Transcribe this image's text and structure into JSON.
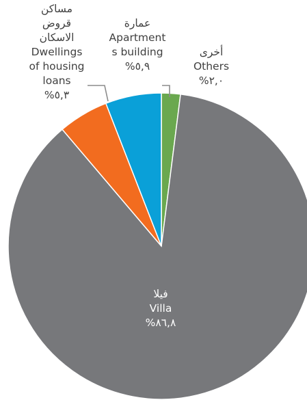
{
  "chart_data": {
    "type": "pie",
    "start_angle_deg": 0,
    "direction": "clockwise",
    "slices": [
      {
        "key": "others",
        "value": 2.0,
        "color": "#6aa84f",
        "label_lines": [
          "أخرى",
          "Others",
          "%٢,٠"
        ]
      },
      {
        "key": "villa",
        "value": 86.8,
        "color": "#77787b",
        "label_lines": [
          "فيلا",
          "Villa",
          "%٨٦,٨"
        ]
      },
      {
        "key": "housing",
        "value": 5.3,
        "color": "#f26c1f",
        "label_lines": [
          "مساكن",
          "قروض",
          "الاسكان",
          "Dwellings",
          "of housing",
          "loans",
          "%٥,٣"
        ]
      },
      {
        "key": "apartments",
        "value": 5.9,
        "color": "#0aa0d8",
        "label_lines": [
          "عمارة",
          "Apartment",
          "s building",
          "%٥,٩"
        ]
      }
    ]
  }
}
